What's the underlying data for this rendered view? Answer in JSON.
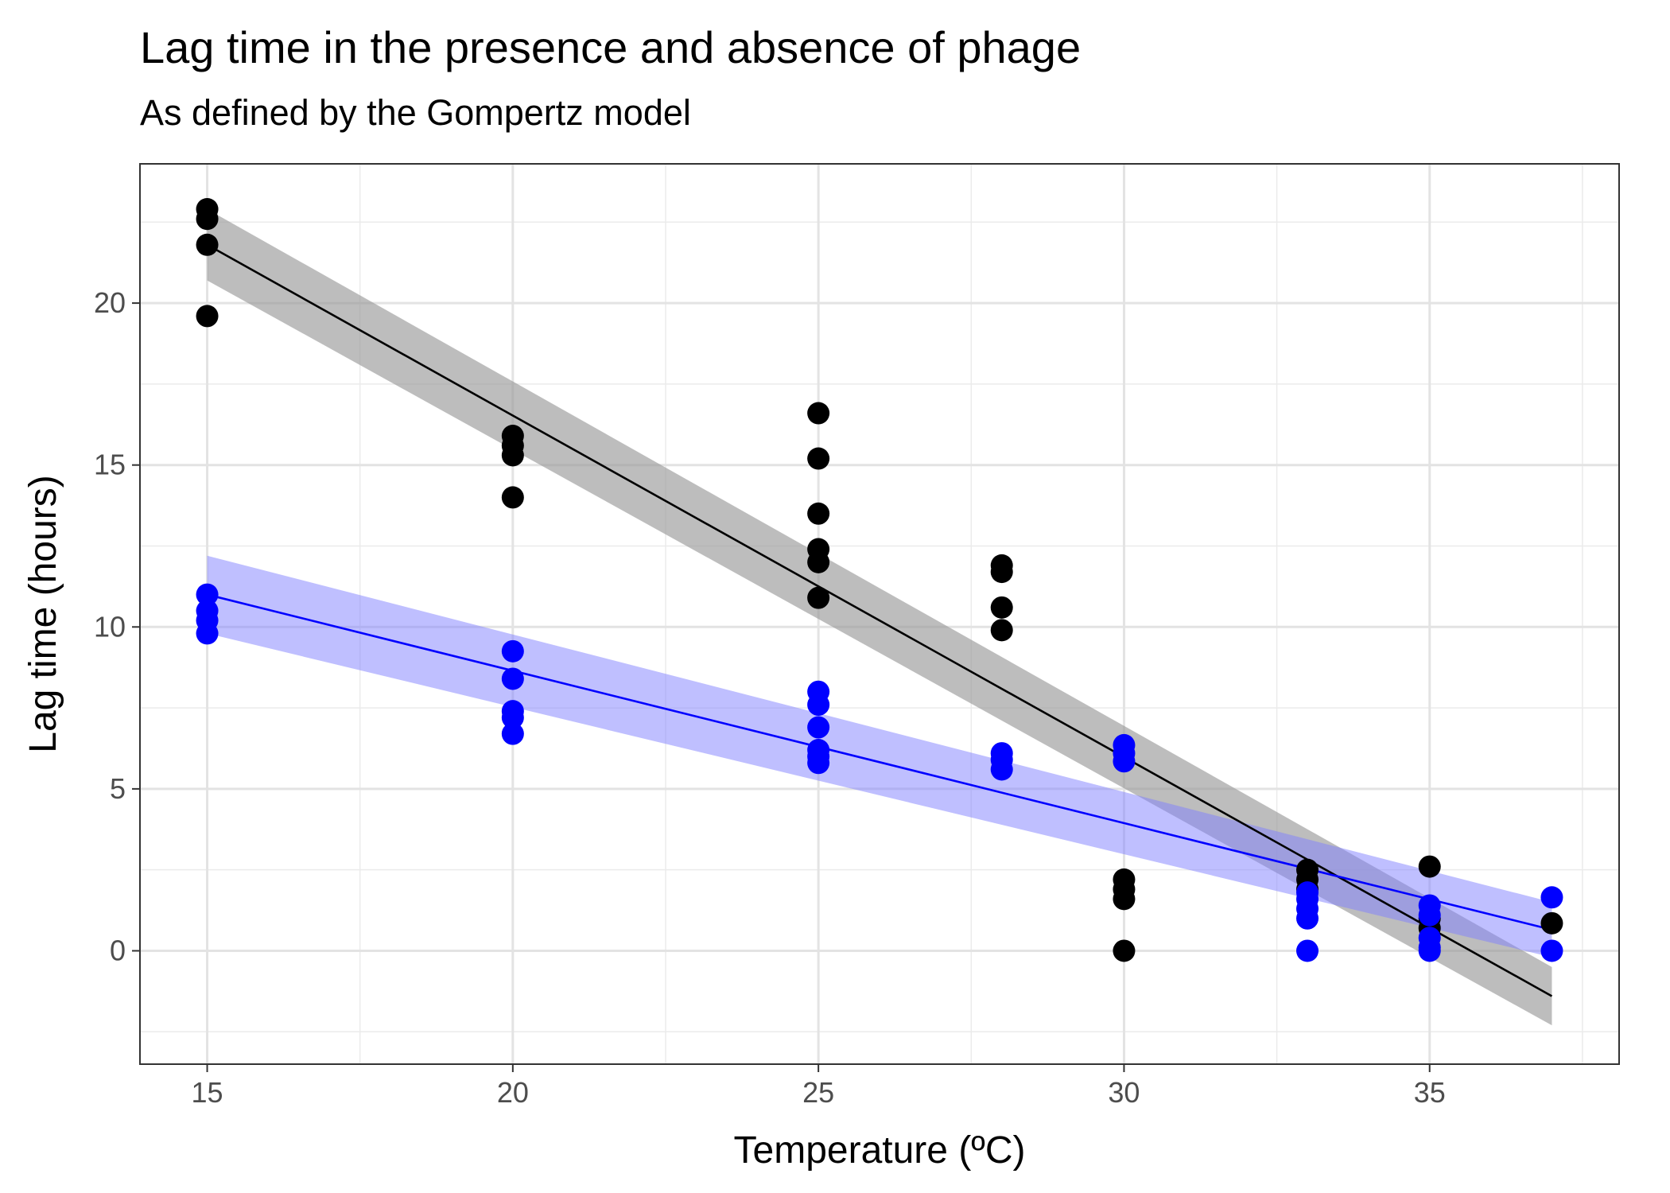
{
  "chart_data": {
    "type": "scatter",
    "title": "Lag time in the presence and absence of phage",
    "subtitle": "As defined by the Gompertz model",
    "xlabel": "Temperature (ºC)",
    "ylabel": "Lag time (hours)",
    "xlim": [
      13.9,
      38.1
    ],
    "ylim": [
      -3.5,
      24.3
    ],
    "x_ticks": [
      15,
      20,
      25,
      30,
      35
    ],
    "y_ticks": [
      0,
      5,
      10,
      15,
      20
    ],
    "grid": true,
    "series": [
      {
        "color": "#000000",
        "points": [
          [
            15,
            22.9
          ],
          [
            15,
            22.6
          ],
          [
            15,
            21.8
          ],
          [
            15,
            19.6
          ],
          [
            20,
            15.9
          ],
          [
            20,
            15.6
          ],
          [
            20,
            15.3
          ],
          [
            20,
            14.0
          ],
          [
            25,
            16.6
          ],
          [
            25,
            15.2
          ],
          [
            25,
            13.5
          ],
          [
            25,
            12.4
          ],
          [
            25,
            12.0
          ],
          [
            25,
            10.9
          ],
          [
            28,
            11.9
          ],
          [
            28,
            11.7
          ],
          [
            28,
            10.6
          ],
          [
            28,
            9.9
          ],
          [
            30,
            2.2
          ],
          [
            30,
            1.9
          ],
          [
            30,
            1.6
          ],
          [
            30,
            0.0
          ],
          [
            33,
            2.5
          ],
          [
            33,
            2.2
          ],
          [
            33,
            1.9
          ],
          [
            35,
            2.6
          ],
          [
            35,
            1.0
          ],
          [
            35,
            0.7
          ],
          [
            37,
            0.85
          ]
        ],
        "fit": {
          "x": [
            15,
            37
          ],
          "y": [
            21.8,
            -1.4
          ]
        },
        "band": {
          "x": [
            15,
            37
          ],
          "lower": [
            20.7,
            -2.3
          ],
          "upper": [
            22.9,
            -0.5
          ]
        }
      },
      {
        "color": "#0000ff",
        "points": [
          [
            15,
            11.0
          ],
          [
            15,
            10.5
          ],
          [
            15,
            10.2
          ],
          [
            15,
            9.8
          ],
          [
            20,
            9.25
          ],
          [
            20,
            8.4
          ],
          [
            20,
            7.4
          ],
          [
            20,
            7.2
          ],
          [
            20,
            6.7
          ],
          [
            25,
            8.0
          ],
          [
            25,
            7.6
          ],
          [
            25,
            6.9
          ],
          [
            25,
            6.2
          ],
          [
            25,
            6.0
          ],
          [
            25,
            5.8
          ],
          [
            28,
            6.1
          ],
          [
            28,
            5.9
          ],
          [
            28,
            5.6
          ],
          [
            30,
            6.35
          ],
          [
            30,
            6.1
          ],
          [
            30,
            5.85
          ],
          [
            33,
            1.8
          ],
          [
            33,
            1.6
          ],
          [
            33,
            1.3
          ],
          [
            33,
            1.0
          ],
          [
            33,
            0.0
          ],
          [
            35,
            1.4
          ],
          [
            35,
            1.1
          ],
          [
            35,
            0.4
          ],
          [
            35,
            0.1
          ],
          [
            35,
            0.0
          ],
          [
            37,
            1.65
          ],
          [
            37,
            0.0
          ]
        ],
        "fit": {
          "x": [
            15,
            37
          ],
          "y": [
            11.0,
            0.65
          ]
        },
        "band": {
          "x": [
            15,
            37
          ],
          "lower": [
            9.8,
            -0.2
          ],
          "upper": [
            12.2,
            1.5
          ]
        }
      }
    ]
  }
}
